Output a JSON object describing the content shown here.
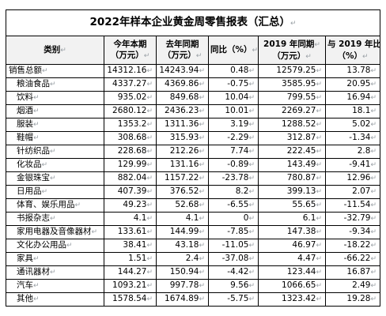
{
  "title": "2022年样本企业黄金周零售报表（汇总）",
  "paragraph_mark": "↵",
  "headers": {
    "category": "类别",
    "current_line1": "今年本期",
    "current_line2": "（万元）",
    "last_line1": "去年同期",
    "last_line2": "（万元）",
    "yoy_line1": "同比（%）",
    "y2019_line1": "2019 年同期",
    "y2019_line2": "（万元）",
    "vs2019_line1": "与 2019 年比",
    "vs2019_line2": "（%）"
  },
  "rows": [
    {
      "name": "销售总额",
      "current": "14312.16",
      "last": "14243.94",
      "yoy": "0.48",
      "y2019": "12579.25",
      "vs2019": "13.78",
      "indent": false
    },
    {
      "name": "粮油食品",
      "current": "4337.27",
      "last": "4369.86",
      "yoy": "-0.75",
      "y2019": "3585.95",
      "vs2019": "20.95",
      "indent": true
    },
    {
      "name": "饮料",
      "current": "935.02",
      "last": "849.68",
      "yoy": "10.04",
      "y2019": "799.55",
      "vs2019": "16.94",
      "indent": true
    },
    {
      "name": "烟酒",
      "current": "2680.12",
      "last": "2436.23",
      "yoy": "10.01",
      "y2019": "2269.27",
      "vs2019": "18.1",
      "indent": true
    },
    {
      "name": "服装",
      "current": "1353.2",
      "last": "1311.36",
      "yoy": "3.19",
      "y2019": "1288.52",
      "vs2019": "5.02",
      "indent": true
    },
    {
      "name": "鞋帽",
      "current": "308.68",
      "last": "315.93",
      "yoy": "-2.29",
      "y2019": "312.87",
      "vs2019": "-1.34",
      "indent": true
    },
    {
      "name": "针纺织品",
      "current": "228.68",
      "last": "212.26",
      "yoy": "7.74",
      "y2019": "222.45",
      "vs2019": "2.8",
      "indent": true
    },
    {
      "name": "化妆品",
      "current": "129.99",
      "last": "131.16",
      "yoy": "-0.89",
      "y2019": "143.49",
      "vs2019": "-9.41",
      "indent": true
    },
    {
      "name": "金银珠宝",
      "current": "882.04",
      "last": "1157.22",
      "yoy": "-23.78",
      "y2019": "780.87",
      "vs2019": "12.96",
      "indent": true
    },
    {
      "name": "日用品",
      "current": "407.39",
      "last": "376.52",
      "yoy": "8.2",
      "y2019": "399.13",
      "vs2019": "2.07",
      "indent": true
    },
    {
      "name": "体育、娱乐用品",
      "current": "49.23",
      "last": "52.68",
      "yoy": "-6.55",
      "y2019": "55.65",
      "vs2019": "-11.54",
      "indent": true
    },
    {
      "name": "书报杂志",
      "current": "4.1",
      "last": "4.1",
      "yoy": "0",
      "y2019": "6.1",
      "vs2019": "-32.79",
      "indent": true
    },
    {
      "name": "家用电器及音像器材",
      "current": "133.61",
      "last": "144.99",
      "yoy": "-7.85",
      "y2019": "147.38",
      "vs2019": "-9.34",
      "indent": true
    },
    {
      "name": "文化办公用品",
      "current": "38.41",
      "last": "43.18",
      "yoy": "-11.05",
      "y2019": "46.97",
      "vs2019": "-18.22",
      "indent": true
    },
    {
      "name": "家具",
      "current": "1.51",
      "last": "2.4",
      "yoy": "-37.08",
      "y2019": "4.47",
      "vs2019": "-66.22",
      "indent": true
    },
    {
      "name": "通讯器材",
      "current": "144.27",
      "last": "150.94",
      "yoy": "-4.42",
      "y2019": "123.44",
      "vs2019": "16.87",
      "indent": true
    },
    {
      "name": "汽车",
      "current": "1093.21",
      "last": "997.78",
      "yoy": "9.56",
      "y2019": "1066.65",
      "vs2019": "2.49",
      "indent": true
    },
    {
      "name": "其他",
      "current": "1578.54",
      "last": "1674.89",
      "yoy": "-5.75",
      "y2019": "1323.42",
      "vs2019": "19.28",
      "indent": true
    }
  ]
}
